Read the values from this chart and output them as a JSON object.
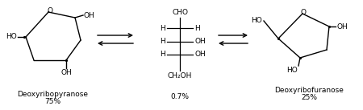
{
  "bg_color": "#ffffff",
  "label1_name": "Deoxyribopyranose",
  "label1_pct": "75%",
  "label2_pct": "0.7%",
  "label3_name": "Deoxyribofuranose",
  "label3_pct": "25%",
  "font_size_label": 6.5,
  "font_size_chem": 6.5
}
